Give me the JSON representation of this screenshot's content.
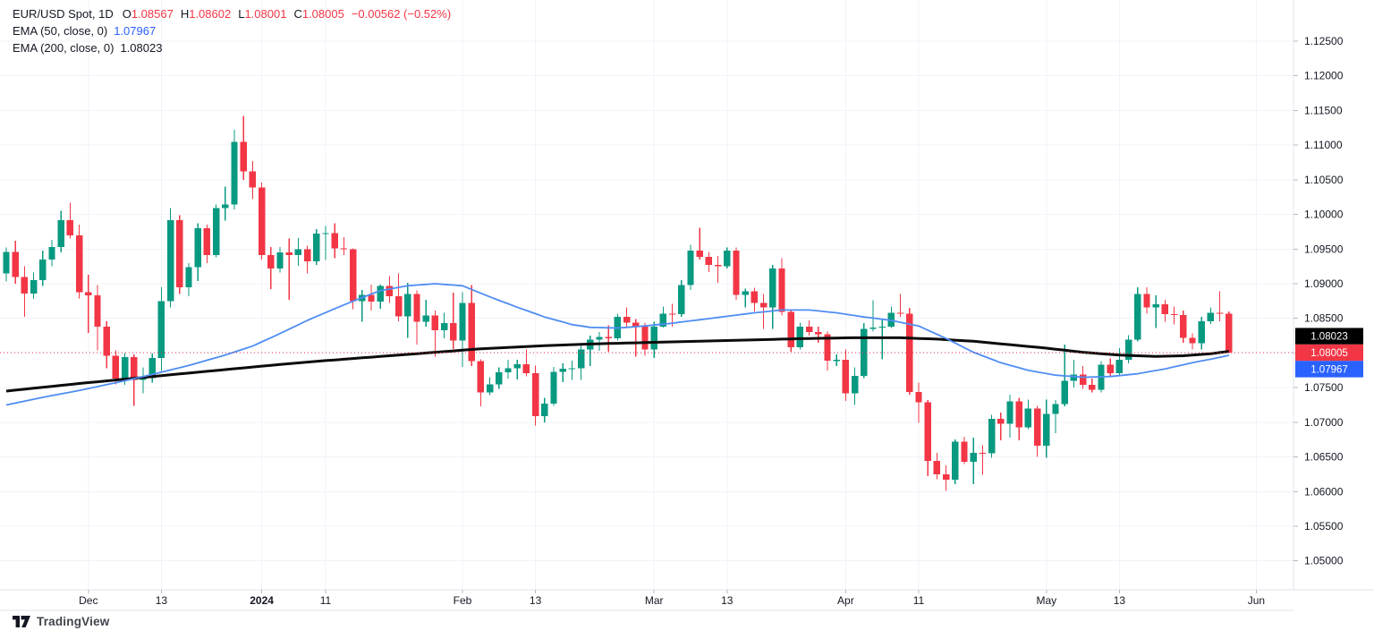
{
  "legend": {
    "title": "EUR/USD Spot, 1D",
    "ohlc": [
      {
        "k": "O",
        "v": "1.08567"
      },
      {
        "k": "H",
        "v": "1.08602"
      },
      {
        "k": "L",
        "v": "1.08001"
      },
      {
        "k": "C",
        "v": "1.08005"
      }
    ],
    "change": "−0.00562 (−0.52%)",
    "ema50": {
      "label": "EMA (50, close, 0)",
      "value": "1.07967"
    },
    "ema200": {
      "label": "EMA (200, close, 0)",
      "value": "1.08023"
    }
  },
  "badges": [
    {
      "value": "1.08023",
      "bg": "#000000"
    },
    {
      "value": "1.08005",
      "bg": "#f23645"
    },
    {
      "value": "1.07967",
      "bg": "#2962ff"
    }
  ],
  "footer": {
    "brand": "TradingView"
  },
  "colors": {
    "up": "#089981",
    "down": "#f23645",
    "ema50": "#4f8df2",
    "ema200": "#0b0b0b",
    "grid": "#f0f3fa",
    "border": "#e0e3eb",
    "tick": "#b6b9c1",
    "axis_text": "#131722",
    "last_price": "#f23645",
    "badge_text": "#ffffff"
  },
  "chart_data": {
    "type": "candlestick",
    "symbol": "EUR/USD Spot",
    "interval": "1D",
    "ylim": [
      1.05,
      1.125
    ],
    "last_price": 1.08005,
    "price_ticks": [
      "1.12500",
      "1.12000",
      "1.11500",
      "1.11000",
      "1.10500",
      "1.10000",
      "1.09500",
      "1.09000",
      "1.08500",
      "1.08000",
      "1.07500",
      "1.07000",
      "1.06500",
      "1.06000",
      "1.05500",
      "1.05000"
    ],
    "time_ticks": [
      {
        "label": "Dec",
        "i": 9
      },
      {
        "label": "13",
        "i": 17
      },
      {
        "label": "2024",
        "i": 28,
        "year": true
      },
      {
        "label": "11",
        "i": 35
      },
      {
        "label": "Feb",
        "i": 50
      },
      {
        "label": "13",
        "i": 58
      },
      {
        "label": "Mar",
        "i": 71
      },
      {
        "label": "13",
        "i": 79
      },
      {
        "label": "Apr",
        "i": 92
      },
      {
        "label": "11",
        "i": 100
      },
      {
        "label": "May",
        "i": 114
      },
      {
        "label": "13",
        "i": 122
      },
      {
        "label": "Jun",
        "i": 137
      }
    ],
    "ohlc": [
      [
        1.0915,
        1.0952,
        1.0903,
        1.0946
      ],
      [
        1.0946,
        1.0962,
        1.09,
        1.091
      ],
      [
        1.091,
        1.0925,
        1.0852,
        1.0886
      ],
      [
        1.0886,
        1.0916,
        1.0878,
        1.0905
      ],
      [
        1.0905,
        1.0948,
        1.0897,
        1.0935
      ],
      [
        1.0935,
        1.0963,
        1.0925,
        1.0953
      ],
      [
        1.0953,
        1.1005,
        1.0945,
        1.0992
      ],
      [
        1.0992,
        1.1017,
        1.0965,
        1.097
      ],
      [
        1.097,
        1.0985,
        1.0879,
        1.0888
      ],
      [
        1.0888,
        1.0913,
        1.0829,
        1.0883
      ],
      [
        1.0883,
        1.0898,
        1.0804,
        1.0838
      ],
      [
        1.0838,
        1.0846,
        1.0778,
        1.0796
      ],
      [
        1.0796,
        1.0804,
        1.0755,
        1.0763
      ],
      [
        1.0763,
        1.08,
        1.0754,
        1.0794
      ],
      [
        1.0794,
        1.0798,
        1.0724,
        1.0761
      ],
      [
        1.0761,
        1.0779,
        1.0742,
        1.0764
      ],
      [
        1.0764,
        1.0799,
        1.0757,
        1.0793
      ],
      [
        1.0793,
        1.0895,
        1.0774,
        1.0875
      ],
      [
        1.0875,
        1.1009,
        1.0866,
        1.0992
      ],
      [
        1.0992,
        1.0999,
        1.0885,
        1.0895
      ],
      [
        1.0895,
        1.093,
        1.0882,
        1.0924
      ],
      [
        1.0924,
        1.0987,
        1.0904,
        1.098
      ],
      [
        1.098,
        1.0985,
        1.093,
        1.0941
      ],
      [
        1.0941,
        1.1014,
        1.0938,
        1.1009
      ],
      [
        1.1009,
        1.104,
        1.0991,
        1.1014
      ],
      [
        1.1014,
        1.1122,
        1.1007,
        1.1105
      ],
      [
        1.1105,
        1.1142,
        1.105,
        1.1062
      ],
      [
        1.1062,
        1.1077,
        1.1022,
        1.1039
      ],
      [
        1.1039,
        1.1046,
        1.0935,
        1.0941
      ],
      [
        1.0941,
        1.0953,
        1.0892,
        1.0922
      ],
      [
        1.0922,
        1.0953,
        1.0916,
        1.0945
      ],
      [
        1.0945,
        1.0965,
        1.0877,
        1.0941
      ],
      [
        1.0941,
        1.0966,
        1.0926,
        1.095
      ],
      [
        1.095,
        1.0955,
        1.0915,
        1.0932
      ],
      [
        1.0932,
        1.0979,
        1.0927,
        1.0972
      ],
      [
        1.0972,
        1.0983,
        1.0934,
        1.0973
      ],
      [
        1.0973,
        1.0987,
        1.0937,
        1.0951
      ],
      [
        1.0951,
        1.0967,
        1.0941,
        1.095
      ],
      [
        1.095,
        1.0951,
        1.0863,
        1.0875
      ],
      [
        1.0875,
        1.0891,
        1.0845,
        1.0884
      ],
      [
        1.0884,
        1.0899,
        1.0861,
        1.0874
      ],
      [
        1.0874,
        1.0899,
        1.0864,
        1.0897
      ],
      [
        1.0897,
        1.0911,
        1.0872,
        1.0882
      ],
      [
        1.0882,
        1.0915,
        1.0846,
        1.0853
      ],
      [
        1.0853,
        1.0901,
        1.0822,
        1.0885
      ],
      [
        1.0885,
        1.089,
        1.0812,
        1.0845
      ],
      [
        1.0845,
        1.0877,
        1.0838,
        1.0854
      ],
      [
        1.0854,
        1.0861,
        1.0795,
        1.0833
      ],
      [
        1.0833,
        1.0858,
        1.0821,
        1.0843
      ],
      [
        1.0843,
        1.0887,
        1.0806,
        1.0818
      ],
      [
        1.0818,
        1.0888,
        1.078,
        1.0872
      ],
      [
        1.0872,
        1.0898,
        1.0781,
        1.0788
      ],
      [
        1.0788,
        1.0791,
        1.0723,
        1.0743
      ],
      [
        1.0743,
        1.0765,
        1.0739,
        1.0755
      ],
      [
        1.0755,
        1.0779,
        1.0748,
        1.0772
      ],
      [
        1.0772,
        1.079,
        1.0763,
        1.0778
      ],
      [
        1.0778,
        1.079,
        1.0762,
        1.0784
      ],
      [
        1.0784,
        1.0805,
        1.0766,
        1.0771
      ],
      [
        1.0771,
        1.0782,
        1.0695,
        1.0709
      ],
      [
        1.0709,
        1.0735,
        1.07,
        1.0727
      ],
      [
        1.0727,
        1.078,
        1.0724,
        1.0773
      ],
      [
        1.0773,
        1.0785,
        1.0758,
        1.0777
      ],
      [
        1.0777,
        1.0789,
        1.0761,
        1.0778
      ],
      [
        1.0778,
        1.081,
        1.0761,
        1.0805
      ],
      [
        1.0805,
        1.0825,
        1.0781,
        1.0819
      ],
      [
        1.0819,
        1.083,
        1.0803,
        1.0823
      ],
      [
        1.0823,
        1.084,
        1.0802,
        1.0821
      ],
      [
        1.0821,
        1.0857,
        1.0818,
        1.0852
      ],
      [
        1.0852,
        1.0866,
        1.0837,
        1.0844
      ],
      [
        1.0844,
        1.0849,
        1.0795,
        1.0838
      ],
      [
        1.0838,
        1.0844,
        1.0796,
        1.0805
      ],
      [
        1.0805,
        1.0845,
        1.0793,
        1.0838
      ],
      [
        1.0838,
        1.0867,
        1.0837,
        1.0857
      ],
      [
        1.0857,
        1.0871,
        1.0838,
        1.0856
      ],
      [
        1.0856,
        1.0905,
        1.0852,
        1.0898
      ],
      [
        1.0898,
        1.0956,
        1.0891,
        1.0948
      ],
      [
        1.0948,
        1.0981,
        1.0935,
        1.0939
      ],
      [
        1.0939,
        1.0946,
        1.0917,
        1.0927
      ],
      [
        1.0927,
        1.094,
        1.0901,
        1.0925
      ],
      [
        1.0925,
        1.0952,
        1.0922,
        1.0948
      ],
      [
        1.0948,
        1.0952,
        1.0877,
        1.0884
      ],
      [
        1.0884,
        1.0893,
        1.0866,
        1.0889
      ],
      [
        1.0889,
        1.0894,
        1.086,
        1.0872
      ],
      [
        1.0872,
        1.0885,
        1.0835,
        1.0866
      ],
      [
        1.0866,
        1.0927,
        1.0835,
        1.0922
      ],
      [
        1.0922,
        1.0937,
        1.0854,
        1.0859
      ],
      [
        1.0859,
        1.0863,
        1.0802,
        1.0808
      ],
      [
        1.0808,
        1.0844,
        1.0805,
        1.0838
      ],
      [
        1.0838,
        1.0847,
        1.0825,
        1.083
      ],
      [
        1.083,
        1.0838,
        1.0815,
        1.0827
      ],
      [
        1.0827,
        1.0831,
        1.0775,
        1.0789
      ],
      [
        1.0789,
        1.0798,
        1.0781,
        1.079
      ],
      [
        1.079,
        1.0805,
        1.0731,
        1.0742
      ],
      [
        1.0742,
        1.0779,
        1.0725,
        1.0767
      ],
      [
        1.0767,
        1.0843,
        1.0764,
        1.0835
      ],
      [
        1.0835,
        1.0876,
        1.0831,
        1.0837
      ],
      [
        1.0837,
        1.0848,
        1.0791,
        1.0838
      ],
      [
        1.0838,
        1.0867,
        1.0836,
        1.0858
      ],
      [
        1.0858,
        1.0885,
        1.0852,
        1.0857
      ],
      [
        1.0857,
        1.0865,
        1.074,
        1.0744
      ],
      [
        1.0744,
        1.0757,
        1.0699,
        1.0729
      ],
      [
        1.0729,
        1.0732,
        1.0622,
        1.0644
      ],
      [
        1.0644,
        1.0656,
        1.0618,
        1.0625
      ],
      [
        1.0625,
        1.0638,
        1.0601,
        1.0617
      ],
      [
        1.0617,
        1.0675,
        1.0611,
        1.0672
      ],
      [
        1.0672,
        1.0679,
        1.064,
        1.0643
      ],
      [
        1.0643,
        1.0678,
        1.0611,
        1.0656
      ],
      [
        1.0656,
        1.0667,
        1.0624,
        1.0655
      ],
      [
        1.0655,
        1.0711,
        1.0649,
        1.0705
      ],
      [
        1.0705,
        1.0714,
        1.0674,
        1.0698
      ],
      [
        1.0698,
        1.074,
        1.0678,
        1.073
      ],
      [
        1.073,
        1.0735,
        1.0674,
        1.0693
      ],
      [
        1.0693,
        1.0733,
        1.069,
        1.072
      ],
      [
        1.072,
        1.0724,
        1.065,
        1.0666
      ],
      [
        1.0666,
        1.0733,
        1.0649,
        1.0712
      ],
      [
        1.0712,
        1.0732,
        1.0684,
        1.0726
      ],
      [
        1.0726,
        1.0812,
        1.0723,
        1.076
      ],
      [
        1.076,
        1.079,
        1.075,
        1.0769
      ],
      [
        1.0769,
        1.0781,
        1.0748,
        1.0754
      ],
      [
        1.0754,
        1.0763,
        1.0743,
        1.0747
      ],
      [
        1.0747,
        1.0788,
        1.0743,
        1.0783
      ],
      [
        1.0783,
        1.0792,
        1.0765,
        1.0771
      ],
      [
        1.0771,
        1.0807,
        1.0766,
        1.079
      ],
      [
        1.079,
        1.0826,
        1.0785,
        1.0819
      ],
      [
        1.0819,
        1.0895,
        1.0817,
        1.0885
      ],
      [
        1.0885,
        1.0895,
        1.0857,
        1.0866
      ],
      [
        1.0866,
        1.0883,
        1.0836,
        1.087
      ],
      [
        1.087,
        1.0877,
        1.0845,
        1.0856
      ],
      [
        1.0856,
        1.0867,
        1.0841,
        1.0855
      ],
      [
        1.0855,
        1.0861,
        1.0815,
        1.0822
      ],
      [
        1.0822,
        1.0828,
        1.0805,
        1.0814
      ],
      [
        1.0814,
        1.0852,
        1.0805,
        1.0846
      ],
      [
        1.0846,
        1.0866,
        1.0842,
        1.0858
      ],
      [
        1.0858,
        1.0889,
        1.0846,
        1.0857
      ],
      [
        1.08567,
        1.08602,
        1.08001,
        1.08005
      ]
    ],
    "ema50": {
      "period": 50,
      "source": "close",
      "offset": 0,
      "last": 1.07967,
      "points": [
        [
          0,
          1.0725
        ],
        [
          4,
          1.0736
        ],
        [
          8,
          1.0746
        ],
        [
          12,
          1.0757
        ],
        [
          16,
          1.0769
        ],
        [
          20,
          1.0782
        ],
        [
          24,
          1.0797
        ],
        [
          27,
          1.081
        ],
        [
          30,
          1.0828
        ],
        [
          33,
          1.0847
        ],
        [
          36,
          1.0864
        ],
        [
          39,
          1.088
        ],
        [
          41,
          1.089
        ],
        [
          44,
          1.0897
        ],
        [
          47,
          1.09
        ],
        [
          50,
          1.0897
        ],
        [
          53,
          1.0881
        ],
        [
          56,
          1.0866
        ],
        [
          59,
          1.0852
        ],
        [
          62,
          1.0841
        ],
        [
          64,
          1.0837
        ],
        [
          67,
          1.0836
        ],
        [
          70,
          1.0839
        ],
        [
          73,
          1.0843
        ],
        [
          76,
          1.0848
        ],
        [
          79,
          1.0853
        ],
        [
          82,
          1.0858
        ],
        [
          85,
          1.0862
        ],
        [
          88,
          1.0862
        ],
        [
          91,
          1.0858
        ],
        [
          94,
          1.0852
        ],
        [
          97,
          1.0847
        ],
        [
          100,
          1.0839
        ],
        [
          103,
          1.0821
        ],
        [
          106,
          1.0801
        ],
        [
          109,
          1.0786
        ],
        [
          112,
          1.0775
        ],
        [
          115,
          1.0768
        ],
        [
          118,
          1.0765
        ],
        [
          121,
          1.0766
        ],
        [
          124,
          1.077
        ],
        [
          127,
          1.0777
        ],
        [
          130,
          1.0786
        ],
        [
          132,
          1.0791
        ],
        [
          134,
          1.07967
        ]
      ]
    },
    "ema200": {
      "period": 200,
      "source": "close",
      "offset": 0,
      "last": 1.08023,
      "points": [
        [
          0,
          1.0745
        ],
        [
          8,
          1.0756
        ],
        [
          16,
          1.0766
        ],
        [
          24,
          1.0776
        ],
        [
          28,
          1.0781
        ],
        [
          34,
          1.0788
        ],
        [
          40,
          1.0794
        ],
        [
          46,
          1.08
        ],
        [
          52,
          1.0806
        ],
        [
          58,
          1.081
        ],
        [
          64,
          1.0813
        ],
        [
          70,
          1.0815
        ],
        [
          76,
          1.0817
        ],
        [
          82,
          1.0819
        ],
        [
          88,
          1.0821
        ],
        [
          93,
          1.0822
        ],
        [
          98,
          1.0822
        ],
        [
          102,
          1.082
        ],
        [
          106,
          1.0817
        ],
        [
          110,
          1.0812
        ],
        [
          114,
          1.0807
        ],
        [
          118,
          1.0801
        ],
        [
          122,
          1.0797
        ],
        [
          126,
          1.0795
        ],
        [
          129,
          1.0796
        ],
        [
          132,
          1.0799
        ],
        [
          134,
          1.08023
        ]
      ]
    }
  }
}
